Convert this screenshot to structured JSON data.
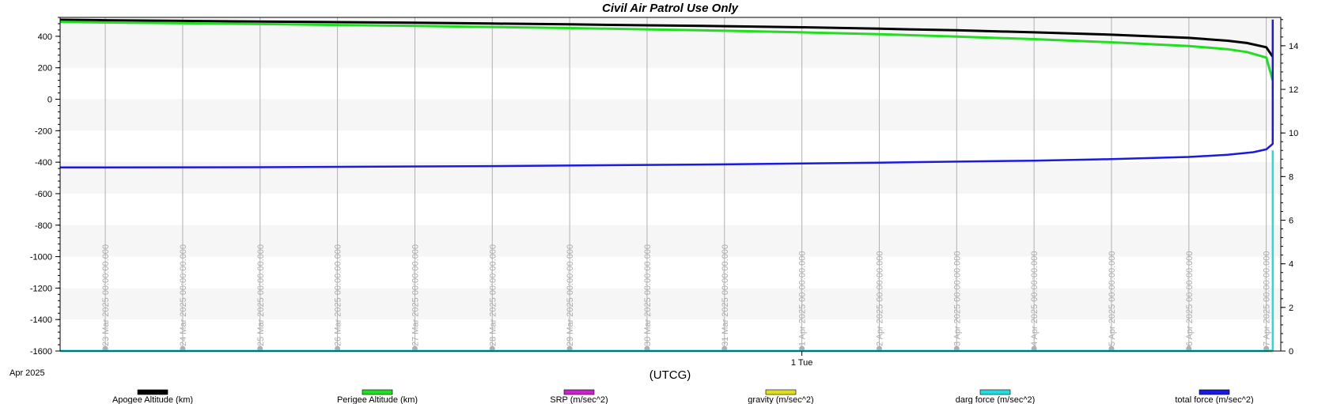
{
  "chart_data": {
    "type": "line",
    "title": "Civil Air Patrol Use Only",
    "xlabel": "(UTCG)",
    "x_corner_label": "Apr 2025",
    "x_major_tick_label": "1 Tue",
    "x_major_tick_date": "2025-04-01",
    "xlim": [
      "2025-03-22T10:00:00",
      "2025-04-07T04:30:00"
    ],
    "y_left": {
      "ylim": [
        -1600,
        520
      ],
      "ticks": [
        400,
        200,
        0,
        -200,
        -400,
        -600,
        -800,
        -1000,
        -1200,
        -1400,
        -1600
      ]
    },
    "y_right": {
      "ylim": [
        0,
        15.3
      ],
      "ticks": [
        14,
        12,
        10,
        8,
        6,
        4,
        2,
        0
      ]
    },
    "grid": true,
    "legend_position": "bottom",
    "vertical_markers": [
      "23 Mar 2025 00:00:00.000",
      "24 Mar 2025 00:00:00.000",
      "25 Mar 2025 00:00:00.000",
      "26 Mar 2025 00:00:00.000",
      "27 Mar 2025 00:00:00.000",
      "28 Mar 2025 00:00:00.000",
      "29 Mar 2025 00:00:00.000",
      "30 Mar 2025 00:00:00.000",
      "31 Mar 2025 00:00:00.000",
      "1 Apr 2025 00:00:00.000",
      "2 Apr 2025 00:00:00.000",
      "3 Apr 2025 00:00:00.000",
      "4 Apr 2025 00:00:00.000",
      "5 Apr 2025 00:00:00.000",
      "6 Apr 2025 00:00:00.000",
      "7 Apr 2025 00:00:00.000"
    ],
    "series": [
      {
        "name": "Apogee Altitude (km)",
        "color": "#000000",
        "axis": "left",
        "x": [
          "2025-03-22T10:00",
          "2025-03-23T00:00",
          "2025-03-24T00:00",
          "2025-03-25T00:00",
          "2025-03-26T00:00",
          "2025-03-27T00:00",
          "2025-03-28T00:00",
          "2025-03-29T00:00",
          "2025-03-30T00:00",
          "2025-03-31T00:00",
          "2025-04-01T00:00",
          "2025-04-02T00:00",
          "2025-04-03T00:00",
          "2025-04-04T00:00",
          "2025-04-05T00:00",
          "2025-04-06T00:00",
          "2025-04-06T12:00",
          "2025-04-06T18:00",
          "2025-04-07T00:00",
          "2025-04-07T02:00"
        ],
        "values": [
          505,
          502,
          498,
          494,
          490,
          486,
          481,
          476,
          470,
          464,
          457,
          448,
          438,
          425,
          410,
          390,
          372,
          357,
          330,
          270
        ]
      },
      {
        "name": "Perigee Altitude (km)",
        "color": "#22dd22",
        "axis": "left",
        "x": [
          "2025-03-22T10:00",
          "2025-03-23T00:00",
          "2025-03-24T00:00",
          "2025-03-25T00:00",
          "2025-03-26T00:00",
          "2025-03-27T00:00",
          "2025-03-28T00:00",
          "2025-03-29T00:00",
          "2025-03-30T00:00",
          "2025-03-31T00:00",
          "2025-04-01T00:00",
          "2025-04-02T00:00",
          "2025-04-03T00:00",
          "2025-04-04T00:00",
          "2025-04-05T00:00",
          "2025-04-06T00:00",
          "2025-04-06T12:00",
          "2025-04-06T18:00",
          "2025-04-07T00:00",
          "2025-04-07T02:00"
        ],
        "values": [
          492,
          488,
          483,
          478,
          472,
          466,
          459,
          452,
          444,
          435,
          425,
          413,
          398,
          382,
          362,
          338,
          318,
          300,
          265,
          120
        ]
      },
      {
        "name": "SRP (m/sec^2)",
        "color": "#cc22cc",
        "axis": "right",
        "x": [
          "2025-03-22T10:00",
          "2025-04-07T02:00"
        ],
        "values": [
          0,
          0
        ]
      },
      {
        "name": "gravity (m/sec^2)",
        "color": "#dddd22",
        "axis": "right",
        "x": [
          "2025-03-22T10:00",
          "2025-04-07T02:00"
        ],
        "values": [
          0,
          0
        ]
      },
      {
        "name": "darg force (m/sec^2)",
        "color": "#22dddd",
        "axis": "right",
        "x": [
          "2025-03-22T10:00",
          "2025-04-07T00:00",
          "2025-04-07T02:00",
          "2025-04-07T02:00"
        ],
        "values": [
          0.01,
          0.01,
          0.02,
          9.2
        ]
      },
      {
        "name": "total force (m/sec^2)",
        "color": "#1a1ae0",
        "axis": "right",
        "x": [
          "2025-03-22T10:00",
          "2025-03-25T00:00",
          "2025-03-28T00:00",
          "2025-03-31T00:00",
          "2025-04-02T00:00",
          "2025-04-04T00:00",
          "2025-04-05T00:00",
          "2025-04-06T00:00",
          "2025-04-06T12:00",
          "2025-04-06T20:00",
          "2025-04-07T00:00",
          "2025-04-07T02:00",
          "2025-04-07T02:00"
        ],
        "values": [
          8.42,
          8.43,
          8.48,
          8.56,
          8.64,
          8.73,
          8.8,
          8.9,
          9.0,
          9.12,
          9.25,
          9.5,
          15.2
        ]
      }
    ]
  }
}
